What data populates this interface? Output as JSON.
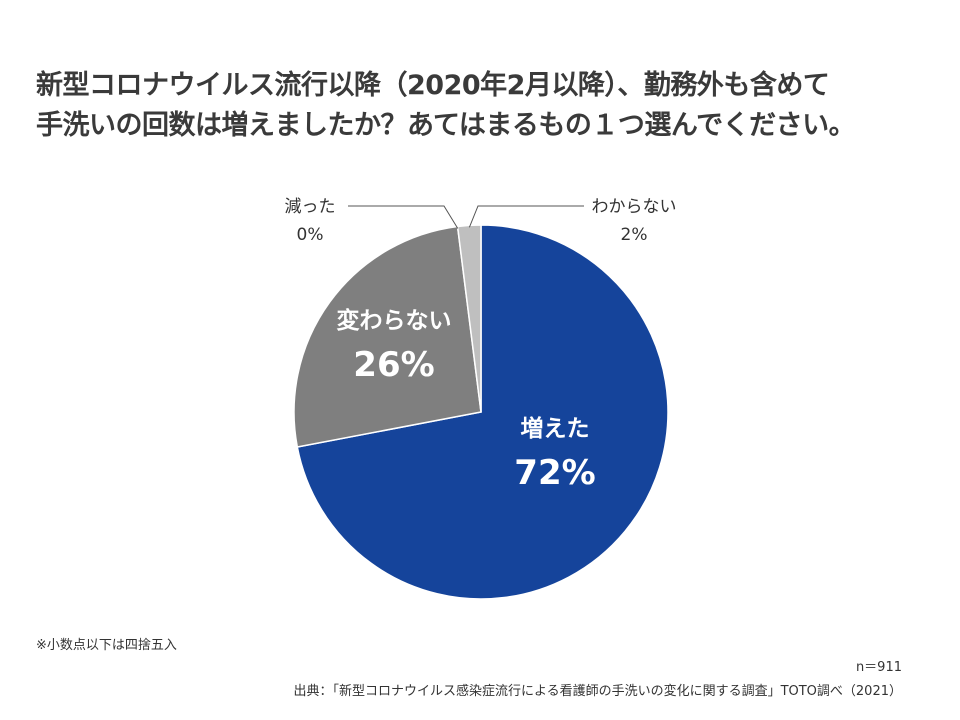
{
  "title_lines": [
    "新型コロナウイルス流行以降（2020年2月以降）、勤務外も含めて",
    "手洗いの回数は増えましたか？あてはまるもの１つ選んでください。"
  ],
  "chart_data": {
    "type": "pie",
    "slices": [
      {
        "label": "増えた",
        "value": 72,
        "value_label": "72%",
        "color": "#15449b",
        "label_color": "#ffffff",
        "label_position": "inside"
      },
      {
        "label": "変わらない",
        "value": 26,
        "value_label": "26%",
        "color": "#7f7f7f",
        "label_color": "#ffffff",
        "label_position": "inside"
      },
      {
        "label": "減った",
        "value": 0,
        "value_label": "0%",
        "color": "#ffffff",
        "label_color": "#333333",
        "label_position": "outside-left"
      },
      {
        "label": "わからない",
        "value": 2,
        "value_label": "2%",
        "color": "#bfbfbf",
        "label_color": "#333333",
        "label_position": "outside-right"
      }
    ],
    "start_angle": "12 o'clock",
    "direction": "clockwise"
  },
  "footnote": "※小数点以下は四捨五入",
  "sample_size": "n＝911",
  "source": "出典：「新型コロナウイルス感染症流行による看護師の手洗いの変化に関する調査」TOTO調べ（2021）"
}
